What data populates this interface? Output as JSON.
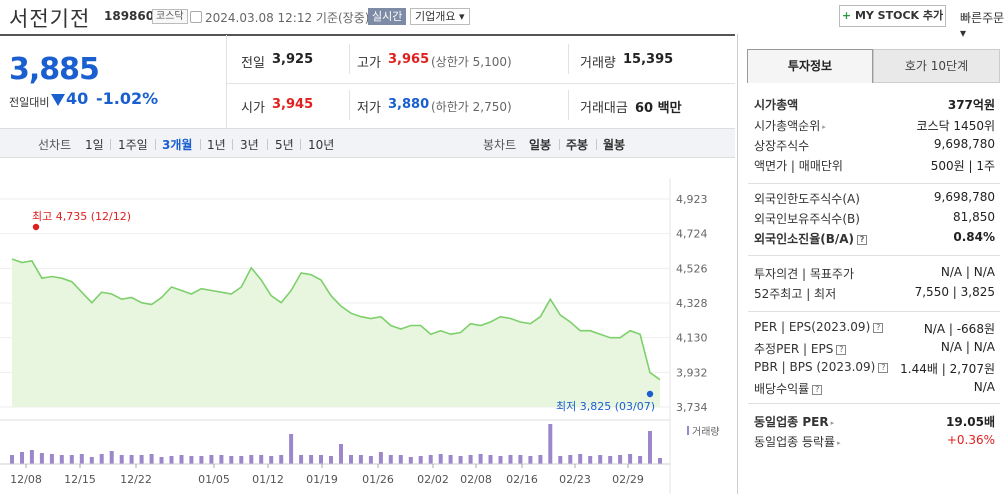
{
  "header": {
    "stock_name": "서전기전",
    "stock_code": "189860",
    "market": "코스닥",
    "datetime": "2024.03.08 12:12 기준(장중)",
    "realtime_label": "실시간",
    "company_label": "기업개요 ▾",
    "mystock_label": "MY STOCK 추가",
    "mystock_plus": "+",
    "fast_order": "빠른주문 ▾"
  },
  "price": {
    "current": "3,885",
    "diff_label": "전일대비",
    "diff": "40",
    "diff_pct": "-1.02%"
  },
  "summary": {
    "prev_close": {
      "label": "전일",
      "value": "3,925"
    },
    "high": {
      "label": "고가",
      "value": "3,965",
      "note": "(상한가 5,100)"
    },
    "volume": {
      "label": "거래량",
      "value": "15,395"
    },
    "open": {
      "label": "시가",
      "value": "3,945"
    },
    "low": {
      "label": "저가",
      "value": "3,880",
      "note": "(하한가 2,750)"
    },
    "amount": {
      "label": "거래대금",
      "value": "60 백만"
    }
  },
  "period_bar": {
    "line_label": "선차트",
    "line_periods": [
      "1일",
      "1주일",
      "3개월",
      "1년",
      "3년",
      "5년",
      "10년"
    ],
    "active_period": "3개월",
    "candle_label": "봉차트",
    "candle_periods": [
      "일봉",
      "주봉",
      "월봉"
    ]
  },
  "chart_data": {
    "type": "area",
    "y_ticks": [
      "4,923",
      "4,724",
      "4,526",
      "4,328",
      "4,130",
      "3,932",
      "3,734"
    ],
    "ylim": [
      3734,
      4923
    ],
    "x_ticks": [
      "12/08",
      "12/15",
      "12/22",
      "01/05",
      "01/12",
      "01/19",
      "01/26",
      "02/02",
      "02/08",
      "02/16",
      "02/23",
      "02/29"
    ],
    "high_annotation": "최고 4,735 (12/12)",
    "low_annotation": "최저 3,825 (03/07)",
    "volume_label": "거래량",
    "color_line": "#7dd06b",
    "color_fill": "#e8f6e0",
    "color_volume": "#9c86cc",
    "prices": [
      4580,
      4560,
      4570,
      4470,
      4480,
      4470,
      4450,
      4390,
      4330,
      4390,
      4380,
      4350,
      4360,
      4330,
      4320,
      4360,
      4420,
      4400,
      4380,
      4410,
      4400,
      4390,
      4380,
      4420,
      4530,
      4460,
      4370,
      4330,
      4400,
      4500,
      4490,
      4460,
      4370,
      4310,
      4270,
      4250,
      4240,
      4250,
      4200,
      4180,
      4200,
      4200,
      4150,
      4170,
      4150,
      4160,
      4210,
      4200,
      4220,
      4250,
      4240,
      4220,
      4210,
      4250,
      4350,
      4260,
      4220,
      4170,
      4170,
      4150,
      4130,
      4130,
      4170,
      4150,
      3930,
      3890
    ],
    "volumes": [
      9,
      12,
      14,
      11,
      10,
      9,
      9,
      10,
      7,
      10,
      13,
      9,
      9,
      9,
      10,
      7,
      8,
      9,
      8,
      8,
      9,
      9,
      8,
      8,
      9,
      9,
      8,
      9,
      30,
      9,
      9,
      9,
      8,
      20,
      9,
      9,
      8,
      12,
      9,
      9,
      7,
      8,
      9,
      10,
      9,
      8,
      9,
      10,
      9,
      8,
      9,
      9,
      8,
      9,
      40,
      8,
      9,
      10,
      8,
      9,
      8,
      9,
      10,
      8,
      33,
      6
    ]
  },
  "right_panel": {
    "tabs": [
      "투자정보",
      "호가 10단계"
    ],
    "rows": [
      {
        "k": "시가총액",
        "v": "377억원",
        "bold": true
      },
      {
        "k": "시가총액순위",
        "v": "코스닥 1450위",
        "tri": true
      },
      {
        "k": "상장주식수",
        "v": "9,698,780"
      },
      {
        "k": "액면가 | 매매단위",
        "v": "500원  |  1주"
      },
      {
        "k": "외국인한도주식수(A)",
        "v": "9,698,780"
      },
      {
        "k": "외국인보유주식수(B)",
        "v": "81,850"
      },
      {
        "k": "외국인소진율(B/A)",
        "v": "0.84%",
        "bold": true,
        "q": true
      },
      {
        "k": "투자의견 | 목표주가",
        "v": "N/A  |  N/A"
      },
      {
        "k": "52주최고 | 최저",
        "v": "7,550  |  3,825"
      },
      {
        "k": "PER | EPS(2023.09)",
        "v": "N/A  |  -668원",
        "q": true
      },
      {
        "k": "추정PER | EPS",
        "v": "N/A  |  N/A",
        "q": true
      },
      {
        "k": "PBR | BPS (2023.09)",
        "v": "1.44배  |  2,707원",
        "q": true
      },
      {
        "k": "배당수익률",
        "v": "N/A",
        "q": true
      },
      {
        "k": "동일업종 PER",
        "v": "19.05배",
        "bold": true,
        "tri": true
      },
      {
        "k": "동일업종 등락률",
        "v": "+0.36%",
        "red": true,
        "tri": true
      }
    ]
  }
}
